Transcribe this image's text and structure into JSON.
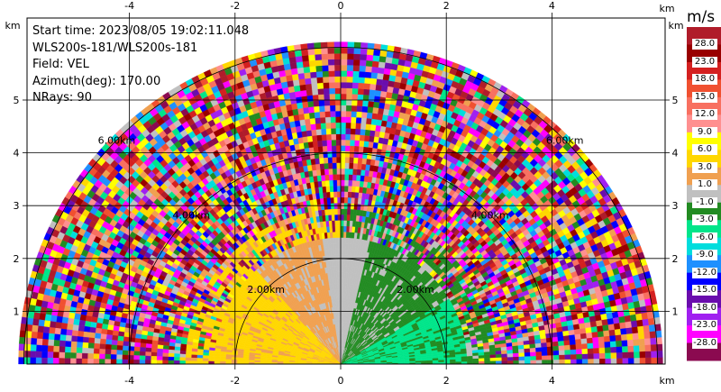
{
  "info": {
    "start_time": "Start time: 2023/08/05 19:02:11.048",
    "instrument": "WLS200s-181/WLS200s-181",
    "field": "Field: VEL",
    "azimuth": "Azimuth(deg): 170.00",
    "nrays": "NRays: 90"
  },
  "chart_data": {
    "type": "heatmap",
    "projection": "RHI half-polar",
    "x_unit": "km",
    "y_unit": "km",
    "xlim": [
      -6,
      6
    ],
    "ylim": [
      0,
      6
    ],
    "x_ticks": [
      -4,
      -2,
      0,
      2,
      4
    ],
    "y_ticks": [
      1,
      2,
      3,
      4,
      5
    ],
    "range_rings_km": [
      2,
      4,
      6
    ],
    "range_ring_labels": [
      "2.00km",
      "4.00km",
      "6.00km"
    ],
    "grid": true,
    "colorbar": {
      "unit": "m/s",
      "labels": [
        "28.0",
        "23.0",
        "18.0",
        "15.0",
        "12.0",
        "9.0",
        "6.0",
        "3.0",
        "1.0",
        "-1.0",
        "-3.0",
        "-6.0",
        "-9.0",
        "-12.0",
        "-15.0",
        "-18.0",
        "-23.0",
        "-28.0"
      ],
      "colors": [
        "#b01c2a",
        "#990000",
        "#d42020",
        "#f05030",
        "#f87060",
        "#ff9090",
        "#ffff00",
        "#ffd700",
        "#f0a050",
        "#c0c0c0",
        "#228b22",
        "#00e58a",
        "#00dddd",
        "#1e90ff",
        "#0000ff",
        "#6a0dad",
        "#a020f0",
        "#ff00ff",
        "#8b0a50"
      ]
    },
    "near_field_summary": {
      "range_km": [
        0,
        2.4
      ],
      "negative_x_side": "positive velocity (yellow/orange, ~3 to 9 m/s)",
      "positive_x_side": "negative velocity (green, ~-3 to -6 m/s)"
    },
    "far_field": "noise (random velocities across full scale)"
  }
}
